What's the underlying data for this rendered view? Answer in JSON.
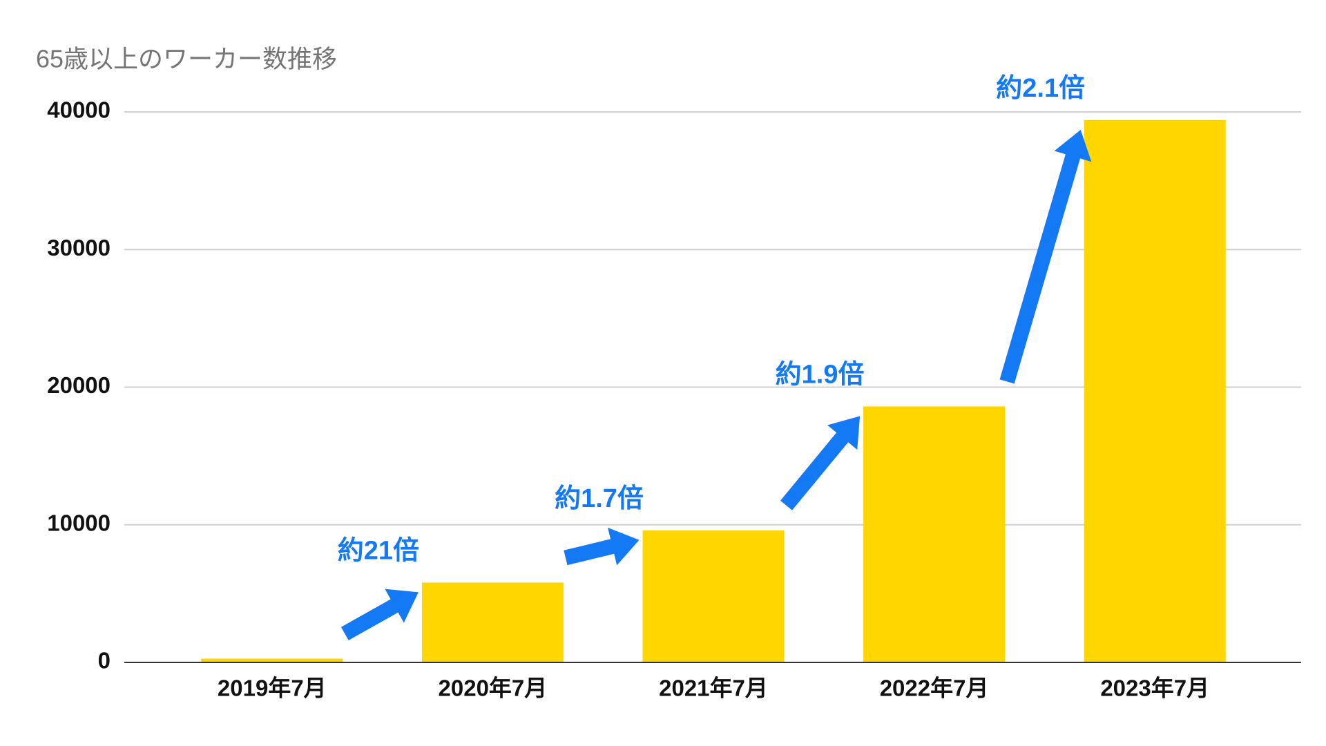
{
  "chart_data": {
    "type": "bar",
    "title": "65歳以上のワーカー数推移",
    "categories": [
      "2019年7月",
      "2020年7月",
      "2021年7月",
      "2022年7月",
      "2023年7月"
    ],
    "values": [
      280,
      5800,
      9600,
      18600,
      39400
    ],
    "color": "#FFD600",
    "ylim": [
      0,
      40000
    ],
    "yticks": [
      0,
      10000,
      20000,
      30000,
      40000
    ],
    "grid": true,
    "annotations": [
      "約21倍",
      "約1.7倍",
      "約1.9倍",
      "約2.1倍"
    ],
    "annotation_color": "#1479F5"
  }
}
